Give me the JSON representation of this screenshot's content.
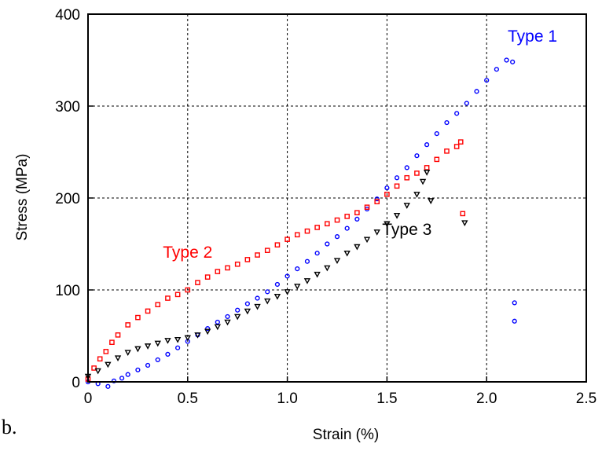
{
  "panel_label": "b.",
  "chart_data": {
    "type": "scatter",
    "title": "",
    "xlabel": "Strain (%)",
    "ylabel": "Stress (MPa)",
    "xlim": [
      0,
      2.5
    ],
    "ylim": [
      0,
      400
    ],
    "xticks": [
      "0",
      "0.5",
      "1.0",
      "1.5",
      "2.0",
      "2.5"
    ],
    "yticks": [
      "0",
      "100",
      "200",
      "300",
      "400"
    ],
    "grid": true,
    "series": [
      {
        "name": "Type 1",
        "color": "#0000ff",
        "marker": "circle",
        "x": [
          0.0,
          0.05,
          0.1,
          0.13,
          0.17,
          0.2,
          0.25,
          0.3,
          0.35,
          0.4,
          0.45,
          0.5,
          0.55,
          0.6,
          0.65,
          0.7,
          0.75,
          0.8,
          0.85,
          0.9,
          0.95,
          1.0,
          1.05,
          1.1,
          1.15,
          1.2,
          1.25,
          1.3,
          1.35,
          1.4,
          1.45,
          1.5,
          1.55,
          1.6,
          1.65,
          1.7,
          1.75,
          1.8,
          1.85,
          1.9,
          1.95,
          2.0,
          2.05,
          2.1,
          2.13,
          2.14,
          2.14
        ],
        "y": [
          0,
          -2,
          -5,
          1,
          4,
          8,
          13,
          18,
          24,
          30,
          37,
          44,
          51,
          58,
          65,
          71,
          78,
          85,
          91,
          98,
          106,
          115,
          123,
          131,
          140,
          150,
          158,
          167,
          177,
          188,
          199,
          211,
          222,
          233,
          246,
          258,
          270,
          282,
          292,
          303,
          316,
          328,
          340,
          350,
          348,
          86,
          66
        ]
      },
      {
        "name": "Type 2",
        "color": "#ff0000",
        "marker": "square",
        "x": [
          0.0,
          0.03,
          0.06,
          0.09,
          0.12,
          0.15,
          0.2,
          0.25,
          0.3,
          0.35,
          0.4,
          0.45,
          0.5,
          0.55,
          0.6,
          0.65,
          0.7,
          0.75,
          0.8,
          0.85,
          0.9,
          0.95,
          1.0,
          1.05,
          1.1,
          1.15,
          1.2,
          1.25,
          1.3,
          1.35,
          1.4,
          1.45,
          1.5,
          1.55,
          1.6,
          1.65,
          1.7,
          1.75,
          1.8,
          1.85,
          1.87,
          1.88
        ],
        "y": [
          3,
          15,
          25,
          33,
          43,
          51,
          62,
          70,
          77,
          84,
          91,
          95,
          100,
          108,
          114,
          120,
          124,
          128,
          133,
          138,
          143,
          149,
          155,
          160,
          164,
          168,
          172,
          176,
          180,
          184,
          190,
          196,
          204,
          213,
          222,
          227,
          233,
          242,
          251,
          256,
          261,
          183
        ],
        "annotations": [
          {
            "text": "Type 2",
            "x": 0.5,
            "y": 135
          }
        ]
      },
      {
        "name": "Type 3",
        "color": "#000000",
        "marker": "triangle",
        "x": [
          0.0,
          0.05,
          0.1,
          0.15,
          0.2,
          0.25,
          0.3,
          0.35,
          0.4,
          0.45,
          0.5,
          0.55,
          0.6,
          0.65,
          0.7,
          0.75,
          0.8,
          0.85,
          0.9,
          0.95,
          1.0,
          1.05,
          1.1,
          1.15,
          1.2,
          1.25,
          1.3,
          1.35,
          1.4,
          1.45,
          1.5,
          1.55,
          1.6,
          1.65,
          1.68,
          1.7,
          1.72,
          1.89
        ],
        "y": [
          6,
          12,
          19,
          26,
          32,
          36,
          39,
          42,
          45,
          46,
          48,
          51,
          55,
          60,
          65,
          71,
          77,
          82,
          88,
          93,
          98,
          104,
          110,
          117,
          124,
          132,
          140,
          147,
          155,
          163,
          172,
          181,
          192,
          204,
          218,
          228,
          197,
          173
        ],
        "annotations": [
          {
            "text": "Type 3",
            "x": 1.6,
            "y": 160
          }
        ]
      }
    ],
    "annotations": [
      {
        "text": "Type 1",
        "x": 2.23,
        "y": 370,
        "color": "#0000ff"
      }
    ]
  }
}
